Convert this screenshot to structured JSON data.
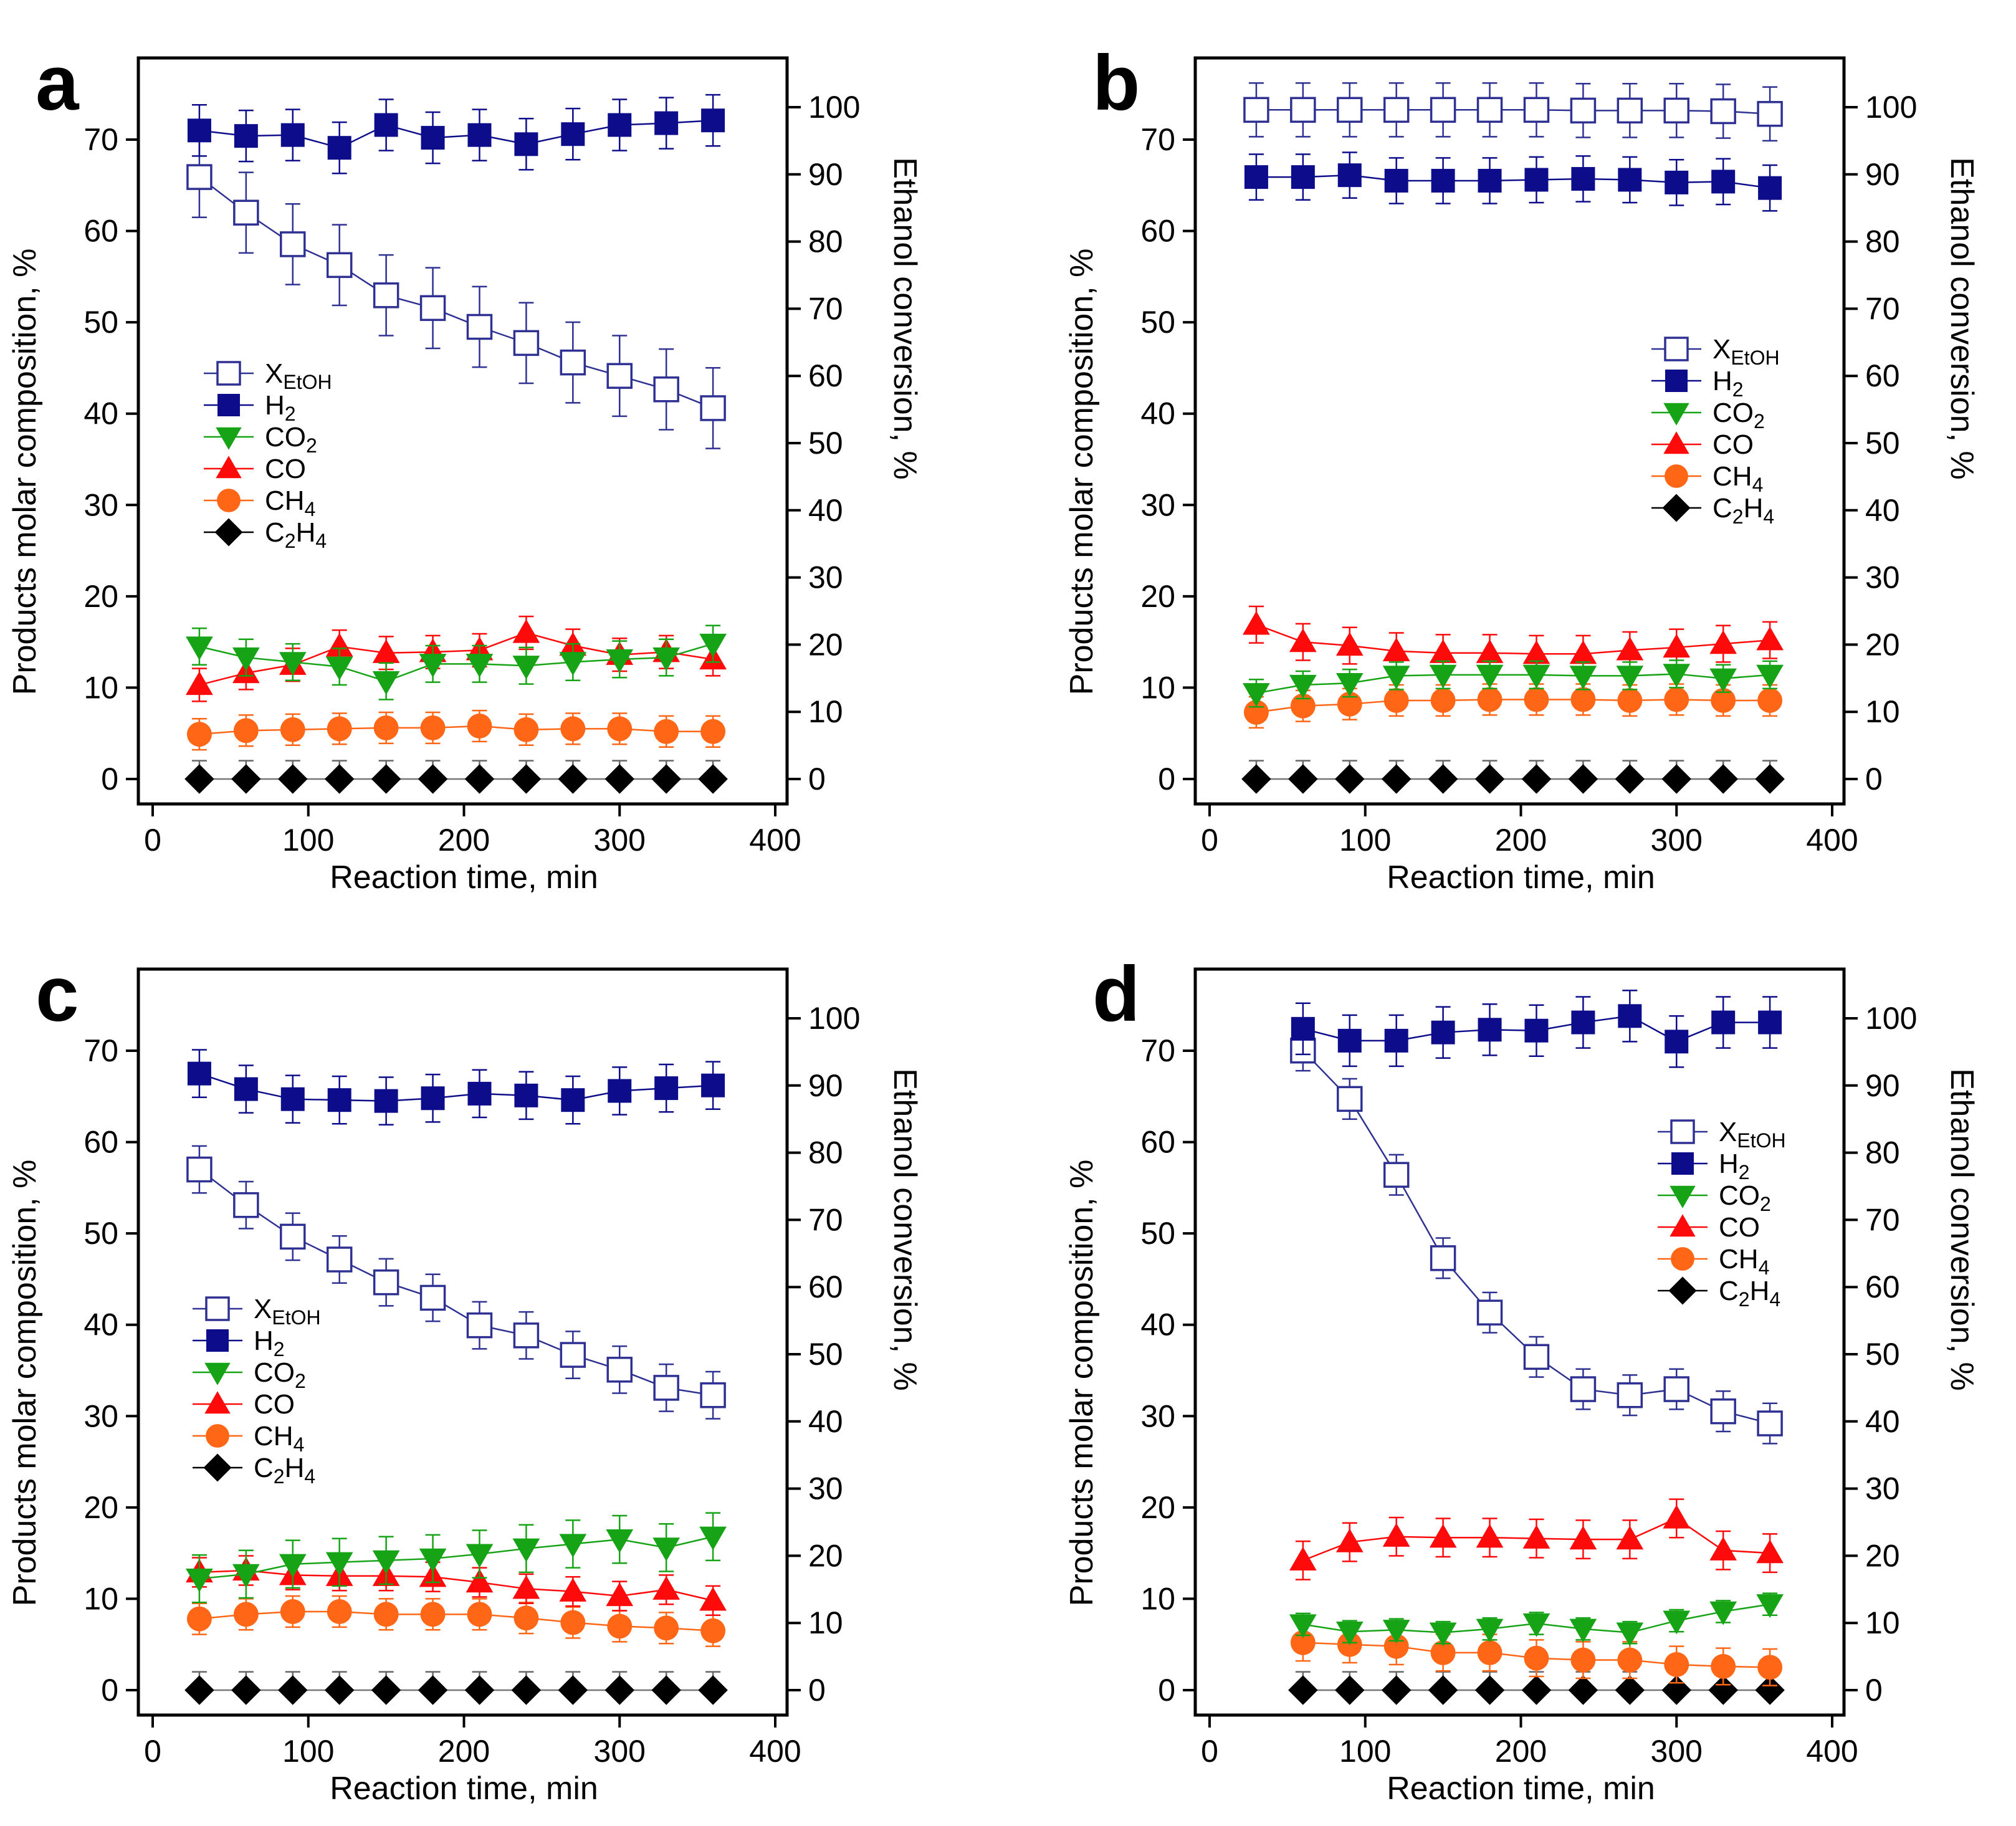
{
  "chart_data": [
    {
      "panel_label": "a",
      "type": "line",
      "xlabel": "Reaction time, min",
      "ylabel": "Products molar composition, %",
      "y2label": "Ethanol conversion, %",
      "xlim": [
        0,
        400
      ],
      "xticks": [
        0,
        100,
        200,
        300,
        400
      ],
      "ylim": [
        0,
        70
      ],
      "yticks": [
        0,
        10,
        20,
        30,
        40,
        50,
        60,
        70
      ],
      "y2lim": [
        0,
        100
      ],
      "y2ticks": [
        0,
        10,
        20,
        30,
        40,
        50,
        60,
        70,
        80,
        90,
        100
      ],
      "grid": false,
      "legend_placement": "center-left",
      "x": [
        30,
        60,
        90,
        120,
        150,
        180,
        210,
        240,
        270,
        300,
        330,
        360
      ],
      "series": [
        {
          "name": "XEtOH",
          "axis": "right",
          "values": [
            89.6,
            84.3,
            79.6,
            76.5,
            72.0,
            70.1,
            67.3,
            64.9,
            62.0,
            60.0,
            58.0,
            55.2
          ],
          "error": 6.0
        },
        {
          "name": "H2",
          "axis": "left",
          "values": [
            71.0,
            70.4,
            70.5,
            69.1,
            71.6,
            70.2,
            70.5,
            69.5,
            70.6,
            71.6,
            71.8,
            72.1
          ],
          "error": 2.8
        },
        {
          "name": "CO2",
          "axis": "left",
          "values": [
            14.5,
            13.3,
            12.8,
            12.3,
            10.7,
            12.6,
            12.6,
            12.4,
            12.8,
            13.1,
            13.3,
            14.8
          ],
          "error": 2.0
        },
        {
          "name": "CO",
          "axis": "left",
          "values": [
            10.3,
            11.6,
            12.5,
            14.5,
            13.8,
            13.9,
            14.1,
            16.0,
            14.6,
            13.6,
            13.9,
            13.1
          ],
          "error": 1.8
        },
        {
          "name": "CH4",
          "axis": "left",
          "values": [
            4.9,
            5.3,
            5.4,
            5.5,
            5.6,
            5.6,
            5.8,
            5.4,
            5.5,
            5.5,
            5.2,
            5.2
          ],
          "error": 1.7
        },
        {
          "name": "C2H4",
          "axis": "left",
          "values": [
            0,
            0,
            0,
            0,
            0,
            0,
            0,
            0,
            0,
            0,
            0,
            0
          ],
          "error": 2.0
        }
      ]
    },
    {
      "panel_label": "b",
      "type": "line",
      "xlabel": "Reaction time, min",
      "ylabel": "Products molar composition, %",
      "y2label": "Ethanol conversion, %",
      "xlim": [
        0,
        400
      ],
      "xticks": [
        0,
        100,
        200,
        300,
        400
      ],
      "ylim": [
        0,
        70
      ],
      "yticks": [
        0,
        10,
        20,
        30,
        40,
        50,
        60,
        70
      ],
      "y2lim": [
        0,
        100
      ],
      "y2ticks": [
        0,
        10,
        20,
        30,
        40,
        50,
        60,
        70,
        80,
        90,
        100
      ],
      "grid": false,
      "legend_placement": "center-right",
      "x": [
        30,
        60,
        90,
        120,
        150,
        180,
        210,
        240,
        270,
        300,
        330,
        360
      ],
      "series": [
        {
          "name": "XEtOH",
          "axis": "right",
          "values": [
            99.6,
            99.6,
            99.6,
            99.6,
            99.6,
            99.6,
            99.6,
            99.5,
            99.5,
            99.5,
            99.4,
            99.0
          ],
          "error": 4.0
        },
        {
          "name": "H2",
          "axis": "left",
          "values": [
            65.9,
            65.9,
            66.1,
            65.5,
            65.5,
            65.5,
            65.6,
            65.7,
            65.6,
            65.3,
            65.4,
            64.7
          ],
          "error": 2.5
        },
        {
          "name": "CO2",
          "axis": "left",
          "values": [
            9.4,
            10.3,
            10.5,
            11.3,
            11.4,
            11.4,
            11.4,
            11.3,
            11.3,
            11.5,
            11.0,
            11.4
          ],
          "error": 1.5
        },
        {
          "name": "CO",
          "axis": "left",
          "values": [
            16.9,
            15.0,
            14.6,
            14.0,
            13.8,
            13.8,
            13.7,
            13.7,
            14.1,
            14.4,
            14.8,
            15.2
          ],
          "error": 2.0
        },
        {
          "name": "CH4",
          "axis": "left",
          "values": [
            7.3,
            8.0,
            8.2,
            8.6,
            8.6,
            8.7,
            8.7,
            8.7,
            8.6,
            8.7,
            8.6,
            8.6
          ],
          "error": 1.7
        },
        {
          "name": "C2H4",
          "axis": "left",
          "values": [
            0,
            0,
            0,
            0,
            0,
            0,
            0,
            0,
            0,
            0,
            0,
            0
          ],
          "error": 2.0
        }
      ]
    },
    {
      "panel_label": "c",
      "type": "line",
      "xlabel": "Reaction time, min",
      "ylabel": "Products molar composition, %",
      "y2label": "Ethanol conversion, %",
      "xlim": [
        0,
        400
      ],
      "xticks": [
        0,
        100,
        200,
        300,
        400
      ],
      "ylim": [
        0,
        70
      ],
      "yticks": [
        0,
        10,
        20,
        30,
        40,
        50,
        60,
        70
      ],
      "y2lim": [
        0,
        100
      ],
      "y2ticks": [
        0,
        10,
        20,
        30,
        40,
        50,
        60,
        70,
        80,
        90,
        100
      ],
      "grid": false,
      "legend_placement": "center-left",
      "x": [
        30,
        60,
        90,
        120,
        150,
        180,
        210,
        240,
        270,
        300,
        330,
        360
      ],
      "series": [
        {
          "name": "XEtOH",
          "axis": "right",
          "values": [
            77.5,
            72.2,
            67.5,
            64.1,
            60.7,
            58.4,
            54.3,
            52.8,
            49.9,
            47.7,
            45.0,
            43.9
          ],
          "error": 3.5
        },
        {
          "name": "H2",
          "axis": "left",
          "values": [
            67.5,
            65.8,
            64.7,
            64.6,
            64.5,
            64.8,
            65.3,
            65.1,
            64.6,
            65.6,
            65.9,
            66.2
          ],
          "error": 2.6
        },
        {
          "name": "CO2",
          "axis": "left",
          "values": [
            12.2,
            12.7,
            13.8,
            14.0,
            14.2,
            14.4,
            14.9,
            15.5,
            16.0,
            16.5,
            15.6,
            16.8
          ],
          "error": 2.6
        },
        {
          "name": "CO",
          "axis": "left",
          "values": [
            12.9,
            13.1,
            12.6,
            12.5,
            12.5,
            12.4,
            11.8,
            11.1,
            10.8,
            10.3,
            11.0,
            9.8
          ],
          "error": 1.6
        },
        {
          "name": "CH4",
          "axis": "left",
          "values": [
            7.8,
            8.3,
            8.6,
            8.6,
            8.3,
            8.3,
            8.3,
            7.9,
            7.4,
            7.0,
            6.8,
            6.5
          ],
          "error": 1.7
        },
        {
          "name": "C2H4",
          "axis": "left",
          "values": [
            0,
            0,
            0,
            0,
            0,
            0,
            0,
            0,
            0,
            0,
            0,
            0
          ],
          "error": 2.0
        }
      ]
    },
    {
      "panel_label": "d",
      "type": "line",
      "xlabel": "Reaction time, min",
      "ylabel": "Products molar composition, %",
      "y2label": "Ethanol conversion, %",
      "xlim": [
        0,
        400
      ],
      "xticks": [
        0,
        100,
        200,
        300,
        400
      ],
      "ylim": [
        0,
        70
      ],
      "yticks": [
        0,
        10,
        20,
        30,
        40,
        50,
        60,
        70
      ],
      "y2lim": [
        0,
        100
      ],
      "y2ticks": [
        0,
        10,
        20,
        30,
        40,
        50,
        60,
        70,
        80,
        90,
        100
      ],
      "grid": false,
      "legend_placement": "upper-right",
      "x": [
        60,
        90,
        120,
        150,
        180,
        210,
        240,
        270,
        300,
        330,
        360
      ],
      "series": [
        {
          "name": "XEtOH",
          "axis": "right",
          "values": [
            95.2,
            88.0,
            76.7,
            64.3,
            56.2,
            49.6,
            44.8,
            43.9,
            44.8,
            41.5,
            39.7
          ],
          "error": 3.0
        },
        {
          "name": "H2",
          "axis": "left",
          "values": [
            72.4,
            71.1,
            71.1,
            72.0,
            72.3,
            72.2,
            73.1,
            73.8,
            71.0,
            73.1,
            73.1
          ],
          "error": 2.8
        },
        {
          "name": "CO2",
          "axis": "left",
          "values": [
            7.2,
            6.4,
            6.6,
            6.3,
            6.7,
            7.3,
            6.7,
            6.3,
            7.6,
            8.6,
            9.4
          ],
          "error": 1.2
        },
        {
          "name": "CO",
          "axis": "left",
          "values": [
            14.2,
            16.2,
            16.8,
            16.7,
            16.7,
            16.6,
            16.5,
            16.5,
            18.8,
            15.3,
            15.0
          ],
          "error": 2.1
        },
        {
          "name": "CH4",
          "axis": "left",
          "values": [
            5.2,
            5.0,
            4.8,
            4.1,
            4.1,
            3.5,
            3.3,
            3.3,
            2.8,
            2.6,
            2.5
          ],
          "error": 2.0
        },
        {
          "name": "C2H4",
          "axis": "left",
          "values": [
            0,
            0,
            0,
            0,
            0,
            0,
            0,
            0,
            0,
            0,
            0
          ],
          "error": 2.0
        }
      ]
    }
  ],
  "legend": [
    {
      "key": "XEtOH",
      "segments": [
        {
          "text": "X",
          "sub": false
        },
        {
          "text": "EtOH",
          "sub": true
        }
      ],
      "marker": "open-square",
      "color": "#2e3192"
    },
    {
      "key": "H2",
      "segments": [
        {
          "text": "H",
          "sub": false
        },
        {
          "text": "2",
          "sub": true
        }
      ],
      "marker": "filled-square",
      "color": "#0d0d8c"
    },
    {
      "key": "CO2",
      "segments": [
        {
          "text": "CO",
          "sub": false
        },
        {
          "text": "2",
          "sub": true
        }
      ],
      "marker": "down-triangle",
      "color": "#16a316"
    },
    {
      "key": "CO",
      "segments": [
        {
          "text": "CO",
          "sub": false
        }
      ],
      "marker": "up-triangle",
      "color": "#ff0a0a"
    },
    {
      "key": "CH4",
      "segments": [
        {
          "text": "CH",
          "sub": false
        },
        {
          "text": "4",
          "sub": true
        }
      ],
      "marker": "circle",
      "color": "#ff6616"
    },
    {
      "key": "C2H4",
      "segments": [
        {
          "text": "C",
          "sub": false
        },
        {
          "text": "2",
          "sub": true
        },
        {
          "text": "H",
          "sub": false
        },
        {
          "text": "4",
          "sub": true
        }
      ],
      "marker": "diamond",
      "color": "#000000"
    }
  ]
}
